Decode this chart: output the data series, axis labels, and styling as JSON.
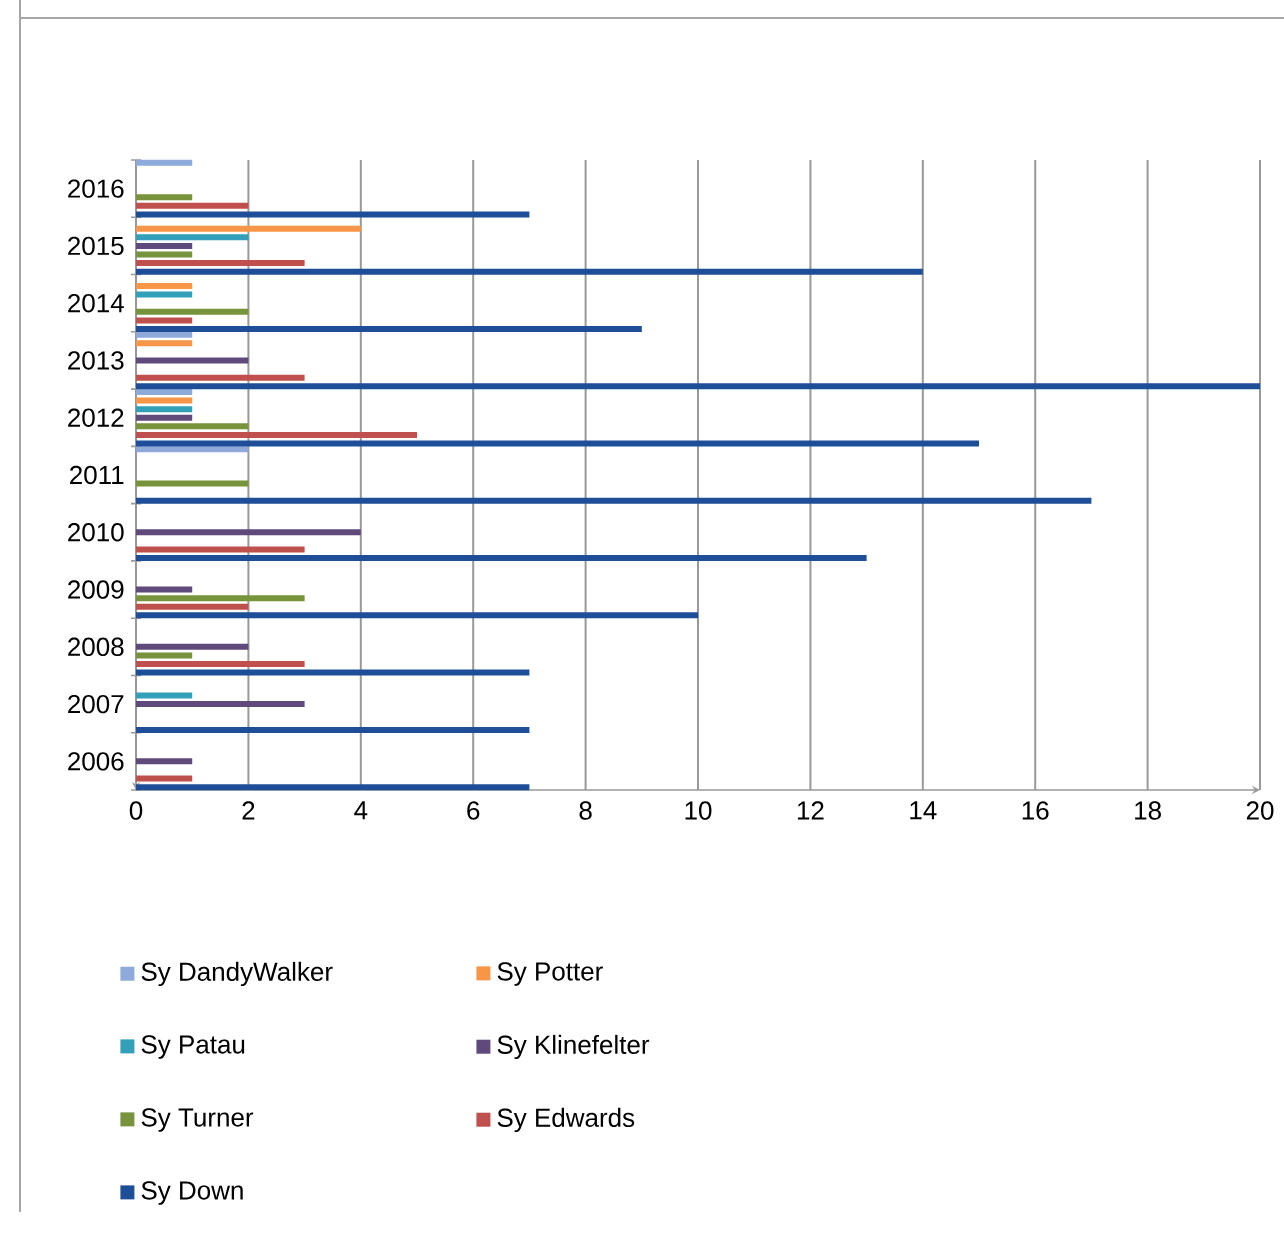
{
  "chart_data": {
    "type": "bar",
    "orientation": "horizontal",
    "categories": [
      "2016",
      "2015",
      "2014",
      "2013",
      "2012",
      "2011",
      "2010",
      "2009",
      "2008",
      "2007",
      "2006"
    ],
    "series": [
      {
        "name": "Sy DandyWalker",
        "color": "#8eaadb",
        "values": [
          1,
          0,
          0,
          1,
          1,
          2,
          0,
          0,
          0,
          0,
          0
        ]
      },
      {
        "name": "Sy Potter",
        "color": "#f79646",
        "values": [
          0,
          4,
          1,
          1,
          1,
          0,
          0,
          0,
          0,
          0,
          0
        ]
      },
      {
        "name": "Sy Patau",
        "color": "#31a0b8",
        "values": [
          0,
          2,
          1,
          0,
          1,
          0,
          0,
          0,
          0,
          1,
          0
        ]
      },
      {
        "name": "Sy Klinefelter",
        "color": "#604a7b",
        "values": [
          0,
          1,
          0,
          2,
          1,
          0,
          4,
          1,
          2,
          3,
          1
        ]
      },
      {
        "name": "Sy Turner",
        "color": "#77933c",
        "values": [
          1,
          1,
          2,
          0,
          2,
          2,
          0,
          3,
          1,
          0,
          0
        ]
      },
      {
        "name": "Sy Edwards",
        "color": "#c0504d",
        "values": [
          2,
          3,
          1,
          3,
          5,
          0,
          3,
          2,
          3,
          0,
          1
        ]
      },
      {
        "name": "Sy Down",
        "color": "#1f4e99",
        "values": [
          7,
          14,
          9,
          20,
          15,
          17,
          13,
          10,
          7,
          7,
          7
        ]
      }
    ],
    "xlim": [
      0,
      20
    ],
    "xticks": [
      0,
      2,
      4,
      6,
      8,
      10,
      12,
      14,
      16,
      18,
      20
    ],
    "grid": "x",
    "legend": "bottom"
  }
}
